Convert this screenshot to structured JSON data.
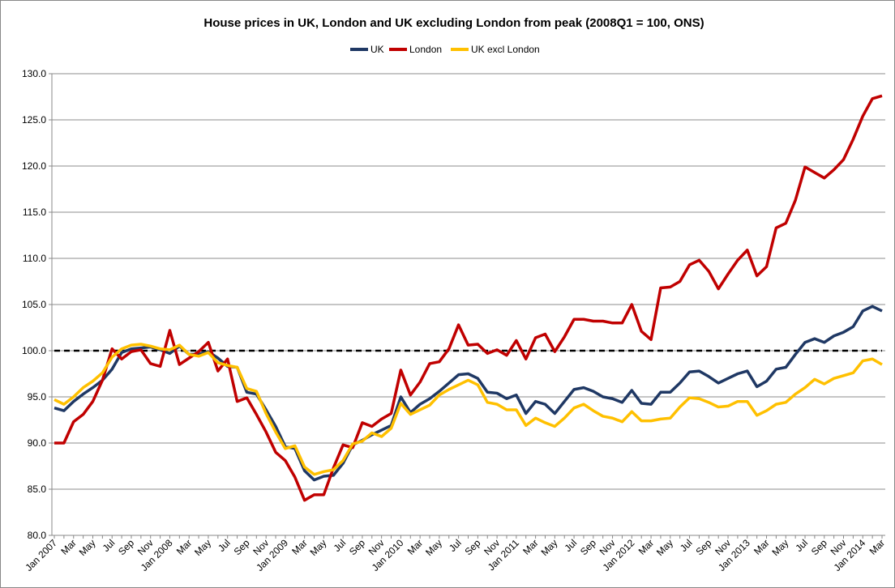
{
  "chart_data": {
    "type": "line",
    "title": "House prices in UK, London and UK excluding London from peak (2008Q1 = 100, ONS)",
    "categories": [
      "Jan 2007",
      null,
      "Mar",
      null,
      "May",
      null,
      "Jul",
      null,
      "Sep",
      null,
      "Nov",
      null,
      "Jan 2008",
      null,
      "Mar",
      null,
      "May",
      null,
      "Jul",
      null,
      "Sep",
      null,
      "Nov",
      null,
      "Jan 2009",
      null,
      "Mar",
      null,
      "May",
      null,
      "Jul",
      null,
      "Sep",
      null,
      "Nov",
      null,
      "Jan 2010",
      null,
      "Mar",
      null,
      "May",
      null,
      "Jul",
      null,
      "Sep",
      null,
      "Nov",
      null,
      "Jan 2011",
      null,
      "Mar",
      null,
      "May",
      null,
      "Jul",
      null,
      "Sep",
      null,
      "Nov",
      null,
      "Jan 2012",
      null,
      "Mar",
      null,
      "May",
      null,
      "Jul",
      null,
      "Sep",
      null,
      "Nov",
      null,
      "Jan 2013",
      null,
      "Mar",
      null,
      "May",
      null,
      "Jul",
      null,
      "Sep",
      null,
      "Nov",
      null,
      "Jan 2014",
      null,
      "Mar"
    ],
    "series": [
      {
        "name": "UK",
        "color": "#1f3864",
        "values": [
          93.8,
          93.5,
          94.5,
          95.3,
          96.0,
          96.8,
          98.0,
          99.8,
          100.2,
          100.3,
          100.4,
          100.1,
          99.7,
          100.5,
          99.6,
          99.6,
          99.9,
          99.2,
          98.3,
          98.2,
          95.5,
          95.3,
          93.6,
          91.8,
          89.6,
          89.4,
          87.0,
          86.0,
          86.4,
          86.5,
          87.8,
          89.8,
          90.3,
          90.9,
          91.4,
          91.9,
          95.0,
          93.3,
          94.2,
          94.8,
          95.6,
          96.5,
          97.4,
          97.5,
          97.0,
          95.5,
          95.4,
          94.8,
          95.2,
          93.2,
          94.5,
          94.2,
          93.2,
          94.5,
          95.8,
          96.0,
          95.6,
          95.0,
          94.8,
          94.4,
          95.7,
          94.3,
          94.2,
          95.5,
          95.5,
          96.5,
          97.7,
          97.8,
          97.2,
          96.5,
          97.0,
          97.5,
          97.8,
          96.1,
          96.7,
          98.0,
          98.2,
          99.6,
          100.9,
          101.3,
          100.9,
          101.6,
          102.0,
          102.6,
          104.3,
          104.8,
          104.3
        ]
      },
      {
        "name": "London",
        "color": "#c00000",
        "values": [
          90.0,
          90.0,
          92.3,
          93.1,
          94.5,
          96.8,
          100.2,
          99.1,
          99.9,
          100.1,
          98.6,
          98.3,
          102.2,
          98.5,
          99.2,
          99.9,
          100.9,
          97.8,
          99.1,
          94.5,
          94.9,
          93.1,
          91.2,
          89.0,
          88.1,
          86.3,
          83.8,
          84.4,
          84.4,
          87.3,
          89.8,
          89.5,
          92.2,
          91.8,
          92.6,
          93.2,
          97.9,
          95.2,
          96.6,
          98.6,
          98.8,
          100.2,
          102.8,
          100.6,
          100.7,
          99.7,
          100.1,
          99.5,
          101.1,
          99.1,
          101.4,
          101.8,
          99.9,
          101.5,
          103.4,
          103.4,
          103.2,
          103.2,
          103.0,
          103.0,
          105.0,
          102.1,
          101.2,
          106.8,
          106.9,
          107.5,
          109.3,
          109.8,
          108.6,
          106.7,
          108.3,
          109.8,
          110.9,
          108.1,
          109.1,
          113.3,
          113.8,
          116.3,
          119.9,
          119.3,
          118.7,
          119.6,
          120.7,
          122.9,
          125.4,
          127.3,
          127.6
        ]
      },
      {
        "name": "UK excl London",
        "color": "#ffc000",
        "values": [
          94.7,
          94.2,
          95.0,
          96.0,
          96.7,
          97.6,
          99.3,
          100.2,
          100.6,
          100.7,
          100.5,
          100.2,
          100.1,
          100.6,
          99.6,
          99.4,
          99.8,
          98.7,
          98.4,
          98.2,
          95.9,
          95.6,
          93.2,
          91.2,
          89.4,
          89.7,
          87.4,
          86.6,
          86.9,
          87.1,
          88.1,
          89.9,
          90.2,
          91.1,
          90.7,
          91.6,
          94.3,
          93.1,
          93.6,
          94.1,
          95.2,
          95.8,
          96.3,
          96.8,
          96.3,
          94.4,
          94.2,
          93.6,
          93.6,
          91.9,
          92.7,
          92.2,
          91.8,
          92.7,
          93.8,
          94.2,
          93.5,
          92.9,
          92.7,
          92.3,
          93.4,
          92.4,
          92.4,
          92.6,
          92.7,
          93.9,
          94.9,
          94.8,
          94.4,
          93.9,
          94.0,
          94.5,
          94.5,
          93.0,
          93.5,
          94.2,
          94.4,
          95.3,
          96.0,
          96.9,
          96.4,
          97.0,
          97.3,
          97.6,
          98.9,
          99.1,
          98.5
        ]
      }
    ],
    "reference_line": 100,
    "ylim": [
      80,
      130
    ],
    "yticks": [
      {
        "value": 80,
        "label": "80.0"
      },
      {
        "value": 85,
        "label": "85.0"
      },
      {
        "value": 90,
        "label": "90.0"
      },
      {
        "value": 95,
        "label": "95.0"
      },
      {
        "value": 100,
        "label": "100.0"
      },
      {
        "value": 105,
        "label": "105.0"
      },
      {
        "value": 110,
        "label": "110.0"
      },
      {
        "value": 115,
        "label": "115.0"
      },
      {
        "value": 120,
        "label": "120.0"
      },
      {
        "value": 125,
        "label": "125.0"
      },
      {
        "value": 130,
        "label": "130.0"
      }
    ],
    "grid": true,
    "legend": "top"
  }
}
